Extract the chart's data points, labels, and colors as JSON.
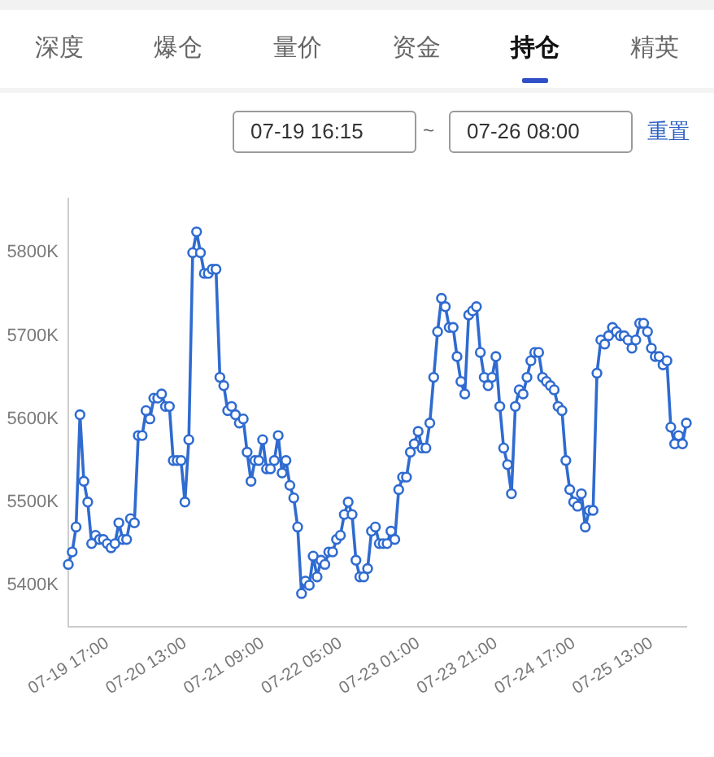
{
  "chart_data": {
    "type": "line",
    "annotations": [
      "深度",
      "爆仓",
      "量价",
      "资金",
      "持仓",
      "精英",
      "07-19 16:15",
      "~",
      "07-26 08:00",
      "重置"
    ],
    "categories": [
      "07-19 17:00",
      null,
      null,
      null,
      null,
      null,
      null,
      null,
      null,
      null,
      null,
      null,
      null,
      null,
      null,
      null,
      null,
      null,
      null,
      null,
      "07-20 13:00",
      null,
      null,
      null,
      null,
      null,
      null,
      null,
      null,
      null,
      null,
      null,
      null,
      null,
      null,
      null,
      null,
      null,
      null,
      null,
      "07-21 09:00",
      null,
      null,
      null,
      null,
      null,
      null,
      null,
      null,
      null,
      null,
      null,
      null,
      null,
      null,
      null,
      null,
      null,
      null,
      null,
      "07-22 05:00",
      null,
      null,
      null,
      null,
      null,
      null,
      null,
      null,
      null,
      null,
      null,
      null,
      null,
      null,
      null,
      null,
      null,
      null,
      null,
      "07-23 01:00",
      null,
      null,
      null,
      null,
      null,
      null,
      null,
      null,
      null,
      null,
      null,
      null,
      null,
      null,
      null,
      null,
      null,
      null,
      null,
      "07-23 21:00",
      null,
      null,
      null,
      null,
      null,
      null,
      null,
      null,
      null,
      null,
      null,
      null,
      null,
      null,
      null,
      null,
      null,
      null,
      null,
      "07-24 17:00",
      null,
      null,
      null,
      null,
      null,
      null,
      null,
      null,
      null,
      null,
      null,
      null,
      null,
      null,
      null,
      null,
      null,
      null,
      null,
      "07-25 13:00",
      null,
      null,
      null,
      null,
      null,
      null,
      null,
      null,
      null,
      null,
      null,
      null,
      null,
      null,
      null,
      null,
      null,
      null,
      null
    ],
    "values": [
      5425,
      5440,
      5470,
      5605,
      5525,
      5500,
      5450,
      5460,
      5455,
      5455,
      5450,
      5445,
      5450,
      5475,
      5455,
      5455,
      5480,
      5475,
      5580,
      5580,
      5610,
      5600,
      5625,
      5625,
      5630,
      5615,
      5615,
      5550,
      5550,
      5550,
      5500,
      5575,
      5800,
      5825,
      5800,
      5775,
      5775,
      5780,
      5780,
      5650,
      5640,
      5610,
      5615,
      5605,
      5595,
      5600,
      5560,
      5525,
      5550,
      5550,
      5575,
      5540,
      5540,
      5550,
      5580,
      5535,
      5550,
      5520,
      5505,
      5470,
      5390,
      5405,
      5400,
      5435,
      5410,
      5430,
      5425,
      5440,
      5440,
      5455,
      5460,
      5485,
      5500,
      5485,
      5430,
      5410,
      5410,
      5420,
      5465,
      5470,
      5450,
      5450,
      5450,
      5465,
      5455,
      5515,
      5530,
      5530,
      5560,
      5570,
      5585,
      5565,
      5565,
      5595,
      5650,
      5705,
      5745,
      5735,
      5710,
      5710,
      5675,
      5645,
      5630,
      5725,
      5730,
      5735,
      5680,
      5650,
      5640,
      5650,
      5675,
      5615,
      5565,
      5545,
      5510,
      5615,
      5635,
      5630,
      5650,
      5670,
      5680,
      5680,
      5650,
      5645,
      5640,
      5635,
      5615,
      5610,
      5550,
      5515,
      5500,
      5495,
      5510,
      5470,
      5490,
      5490,
      5655,
      5695,
      5690,
      5700,
      5710,
      5705,
      5700,
      5700,
      5695,
      5685,
      5695,
      5715,
      5715,
      5705,
      5685,
      5675,
      5675,
      5665,
      5670,
      5590,
      5570,
      5580,
      5570,
      5595
    ],
    "color": "#2f6bd0",
    "marker": "circle",
    "ylim": [
      5350,
      5865
    ],
    "yticks": [
      {
        "value": 5400,
        "label": "5400K"
      },
      {
        "value": 5500,
        "label": "5500K"
      },
      {
        "value": 5600,
        "label": "5600K"
      },
      {
        "value": 5700,
        "label": "5700K"
      },
      {
        "value": 5800,
        "label": "5800K"
      }
    ]
  }
}
